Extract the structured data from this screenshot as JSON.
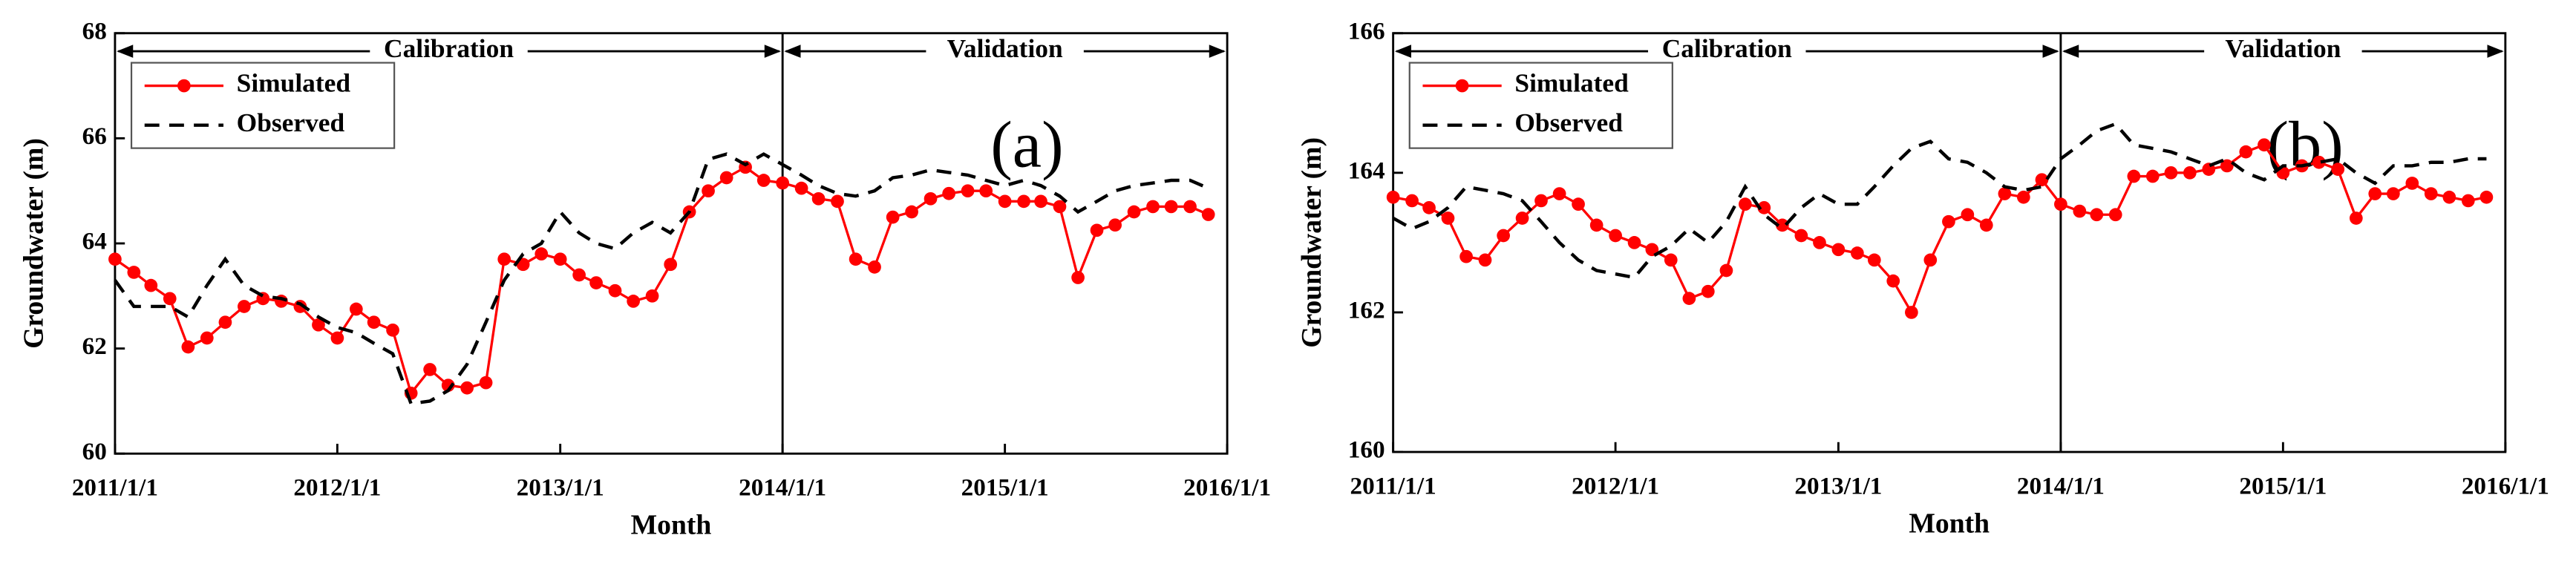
{
  "chart_data": [
    {
      "type": "line",
      "annotations": [
        "Calibration",
        "Validation",
        "(a)"
      ],
      "xlabel": "Month",
      "ylabel": "Groundwater (m)",
      "x": [
        "2011/1/1",
        "2011/2/1",
        "2011/3/1",
        "2011/4/1",
        "2011/5/1",
        "2011/6/1",
        "2011/7/1",
        "2011/8/1",
        "2011/9/1",
        "2011/10/1",
        "2011/11/1",
        "2011/12/1",
        "2012/1/1",
        "2012/2/1",
        "2012/3/1",
        "2012/4/1",
        "2012/5/1",
        "2012/6/1",
        "2012/7/1",
        "2012/8/1",
        "2012/9/1",
        "2012/10/1",
        "2012/11/1",
        "2012/12/1",
        "2013/1/1",
        "2013/2/1",
        "2013/3/1",
        "2013/4/1",
        "2013/5/1",
        "2013/6/1",
        "2013/7/1",
        "2013/8/1",
        "2013/9/1",
        "2013/10/1",
        "2013/11/1",
        "2013/12/1",
        "2014/1/1",
        "2014/2/1",
        "2014/3/1",
        "2014/4/1",
        "2014/5/1",
        "2014/6/1",
        "2014/7/1",
        "2014/8/1",
        "2014/9/1",
        "2014/10/1",
        "2014/11/1",
        "2014/12/1",
        "2015/1/1",
        "2015/2/1",
        "2015/3/1",
        "2015/4/1",
        "2015/5/1",
        "2015/6/1",
        "2015/7/1",
        "2015/8/1",
        "2015/9/1",
        "2015/10/1",
        "2015/11/1",
        "2015/12/1"
      ],
      "series": [
        {
          "name": "Simulated",
          "color": "#ff0000",
          "marker": "circle",
          "values": [
            63.7,
            63.45,
            63.2,
            62.95,
            62.03,
            62.2,
            62.5,
            62.8,
            62.95,
            62.9,
            62.8,
            62.45,
            62.2,
            62.75,
            62.5,
            62.35,
            61.15,
            61.6,
            61.3,
            61.25,
            61.35,
            63.7,
            63.6,
            63.8,
            63.7,
            63.4,
            63.25,
            63.1,
            62.9,
            63.0,
            63.6,
            64.6,
            65.0,
            65.25,
            65.45,
            65.2,
            65.15,
            65.05,
            64.85,
            64.8,
            63.7,
            63.55,
            64.5,
            64.6,
            64.85,
            64.95,
            65.0,
            65.0,
            64.8,
            64.8,
            64.8,
            64.7,
            63.35,
            64.25,
            64.35,
            64.6,
            64.7,
            64.7,
            64.7,
            64.55
          ]
        },
        {
          "name": "Observed",
          "color": "#000000",
          "dashed": true,
          "values": [
            63.3,
            62.8,
            62.8,
            62.8,
            62.6,
            63.2,
            63.7,
            63.2,
            63.0,
            62.95,
            62.85,
            62.6,
            62.4,
            62.3,
            62.1,
            61.9,
            60.95,
            61.0,
            61.2,
            61.7,
            62.5,
            63.3,
            63.8,
            64.0,
            64.6,
            64.2,
            64.0,
            63.9,
            64.2,
            64.4,
            64.2,
            64.6,
            65.6,
            65.7,
            65.5,
            65.7,
            65.5,
            65.3,
            65.1,
            64.95,
            64.9,
            65.0,
            65.25,
            65.3,
            65.4,
            65.35,
            65.3,
            65.2,
            65.1,
            65.2,
            65.1,
            64.9,
            64.6,
            64.8,
            65.0,
            65.1,
            65.15,
            65.2,
            65.2,
            65.05
          ]
        }
      ],
      "xlim": [
        "2011/1/1",
        "2016/1/1"
      ],
      "xticks": [
        "2011/1/1",
        "2012/1/1",
        "2013/1/1",
        "2014/1/1",
        "2015/1/1",
        "2016/1/1"
      ],
      "ylim": [
        60,
        68
      ],
      "yticks": [
        60,
        62,
        64,
        66,
        68
      ],
      "legend": "upper left"
    },
    {
      "type": "line",
      "annotations": [
        "Calibration",
        "Validation",
        "(b)"
      ],
      "xlabel": "Month",
      "ylabel": "Groundwater (m)",
      "x": [
        "2011/1/1",
        "2011/2/1",
        "2011/3/1",
        "2011/4/1",
        "2011/5/1",
        "2011/6/1",
        "2011/7/1",
        "2011/8/1",
        "2011/9/1",
        "2011/10/1",
        "2011/11/1",
        "2011/12/1",
        "2012/1/1",
        "2012/2/1",
        "2012/3/1",
        "2012/4/1",
        "2012/5/1",
        "2012/6/1",
        "2012/7/1",
        "2012/8/1",
        "2012/9/1",
        "2012/10/1",
        "2012/11/1",
        "2012/12/1",
        "2013/1/1",
        "2013/2/1",
        "2013/3/1",
        "2013/4/1",
        "2013/5/1",
        "2013/6/1",
        "2013/7/1",
        "2013/8/1",
        "2013/9/1",
        "2013/10/1",
        "2013/11/1",
        "2013/12/1",
        "2014/1/1",
        "2014/2/1",
        "2014/3/1",
        "2014/4/1",
        "2014/5/1",
        "2014/6/1",
        "2014/7/1",
        "2014/8/1",
        "2014/9/1",
        "2014/10/1",
        "2014/11/1",
        "2014/12/1",
        "2015/1/1",
        "2015/2/1",
        "2015/3/1",
        "2015/4/1",
        "2015/5/1",
        "2015/6/1",
        "2015/7/1",
        "2015/8/1",
        "2015/9/1",
        "2015/10/1",
        "2015/11/1",
        "2015/12/1"
      ],
      "series": [
        {
          "name": "Simulated",
          "color": "#ff0000",
          "marker": "circle",
          "values": [
            163.65,
            163.6,
            163.5,
            163.35,
            162.8,
            162.75,
            163.1,
            163.35,
            163.6,
            163.7,
            163.55,
            163.25,
            163.1,
            163.0,
            162.9,
            162.75,
            162.2,
            162.3,
            162.6,
            163.55,
            163.5,
            163.25,
            163.1,
            163.0,
            162.9,
            162.85,
            162.75,
            162.45,
            162.0,
            162.75,
            163.3,
            163.4,
            163.25,
            163.7,
            163.65,
            163.9,
            163.55,
            163.45,
            163.4,
            163.4,
            163.95,
            163.95,
            164.0,
            164.0,
            164.05,
            164.1,
            164.3,
            164.4,
            164.0,
            164.1,
            164.15,
            164.05,
            163.35,
            163.7,
            163.7,
            163.85,
            163.7,
            163.65,
            163.6,
            163.65
          ]
        },
        {
          "name": "Observed",
          "color": "#000000",
          "dashed": true,
          "values": [
            163.35,
            163.2,
            163.3,
            163.5,
            163.8,
            163.75,
            163.7,
            163.6,
            163.3,
            163.0,
            162.75,
            162.6,
            162.55,
            162.5,
            162.8,
            162.95,
            163.2,
            163.0,
            163.3,
            163.8,
            163.4,
            163.2,
            163.5,
            163.7,
            163.55,
            163.55,
            163.8,
            164.1,
            164.35,
            164.45,
            164.2,
            164.15,
            164.0,
            163.8,
            163.75,
            163.8,
            164.2,
            164.4,
            164.6,
            164.7,
            164.4,
            164.35,
            164.3,
            164.2,
            164.1,
            164.2,
            164.0,
            163.9,
            164.1,
            164.1,
            164.15,
            164.2,
            164.0,
            163.85,
            164.1,
            164.1,
            164.15,
            164.15,
            164.2,
            164.2
          ]
        }
      ],
      "xlim": [
        "2011/1/1",
        "2016/1/1"
      ],
      "xticks": [
        "2011/1/1",
        "2012/1/1",
        "2013/1/1",
        "2014/1/1",
        "2015/1/1",
        "2016/1/1"
      ],
      "ylim": [
        160,
        166
      ],
      "yticks": [
        160,
        162,
        164,
        166
      ],
      "legend": "upper left"
    }
  ]
}
